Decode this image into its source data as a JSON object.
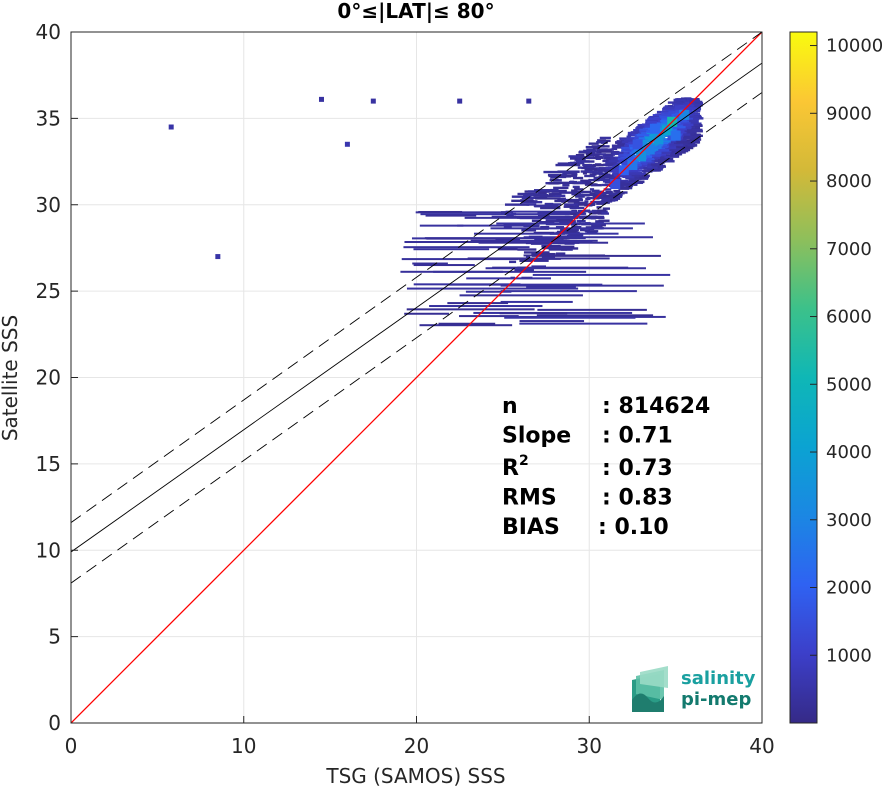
{
  "chart_data": {
    "type": "heatmap",
    "title": "0°≤|LAT|≤ 80°",
    "xlabel": "TSG (SAMOS) SSS",
    "ylabel": "Satellite SSS",
    "xlim": [
      0,
      40
    ],
    "ylim": [
      0,
      40
    ],
    "x_ticks": [
      "0",
      "10",
      "20",
      "30",
      "40"
    ],
    "y_ticks": [
      "0",
      "5",
      "10",
      "15",
      "20",
      "25",
      "30",
      "35",
      "40"
    ],
    "grid": true,
    "colorbar": {
      "ticks": [
        "1000",
        "2000",
        "3000",
        "4000",
        "5000",
        "6000",
        "7000",
        "8000",
        "9000",
        "10000"
      ],
      "range": [
        0,
        10200
      ],
      "colormap": "parula"
    },
    "lines": [
      {
        "name": "1:1",
        "color": "#ff0000",
        "style": "solid",
        "x": [
          0,
          40
        ],
        "y": [
          0,
          40
        ]
      },
      {
        "name": "fit",
        "color": "#000000",
        "style": "solid",
        "x": [
          0,
          40
        ],
        "y": [
          9.9,
          38.2
        ]
      },
      {
        "name": "fit+",
        "color": "#000000",
        "style": "dashed",
        "x": [
          0,
          40
        ],
        "y": [
          11.6,
          40.0
        ]
      },
      {
        "name": "fit-",
        "color": "#000000",
        "style": "dashed",
        "x": [
          0,
          40
        ],
        "y": [
          8.1,
          36.5
        ]
      }
    ],
    "stats": [
      {
        "label": "n",
        "value": ": 814624"
      },
      {
        "label": "Slope",
        "value": ": 0.71"
      },
      {
        "label": "R",
        "sup": "2",
        "value": ": 0.73"
      },
      {
        "label": "RMS",
        "value": ": 0.83"
      },
      {
        "label": "BIAS",
        "value": ": 0.10"
      }
    ],
    "density_points": [
      {
        "x": 35.5,
        "y": 35.2,
        "v": 3000
      },
      {
        "x": 34.5,
        "y": 34.3,
        "v": 4200
      },
      {
        "x": 34.0,
        "y": 33.8,
        "v": 3600
      },
      {
        "x": 33.5,
        "y": 33.2,
        "v": 2800
      },
      {
        "x": 33.0,
        "y": 32.8,
        "v": 3400
      },
      {
        "x": 32.5,
        "y": 32.3,
        "v": 2600
      },
      {
        "x": 32.0,
        "y": 32.0,
        "v": 2000
      },
      {
        "x": 34.8,
        "y": 34.8,
        "v": 5200
      },
      {
        "x": 33.8,
        "y": 34.4,
        "v": 2200
      },
      {
        "x": 32.8,
        "y": 33.5,
        "v": 1600
      },
      {
        "x": 31.5,
        "y": 31.2,
        "v": 1500
      },
      {
        "x": 35.0,
        "y": 34.0,
        "v": 2400
      },
      {
        "x": 16.0,
        "y": 33.5,
        "v": 600
      },
      {
        "x": 5.8,
        "y": 34.5,
        "v": 500
      },
      {
        "x": 8.5,
        "y": 27.0,
        "v": 500
      },
      {
        "x": 14.5,
        "y": 36.1,
        "v": 400
      },
      {
        "x": 17.5,
        "y": 36.0,
        "v": 400
      },
      {
        "x": 22.5,
        "y": 36.0,
        "v": 400
      },
      {
        "x": 26.5,
        "y": 36.0,
        "v": 400
      }
    ],
    "logo": {
      "line1": "salinity",
      "line2": "pi-mep"
    }
  }
}
